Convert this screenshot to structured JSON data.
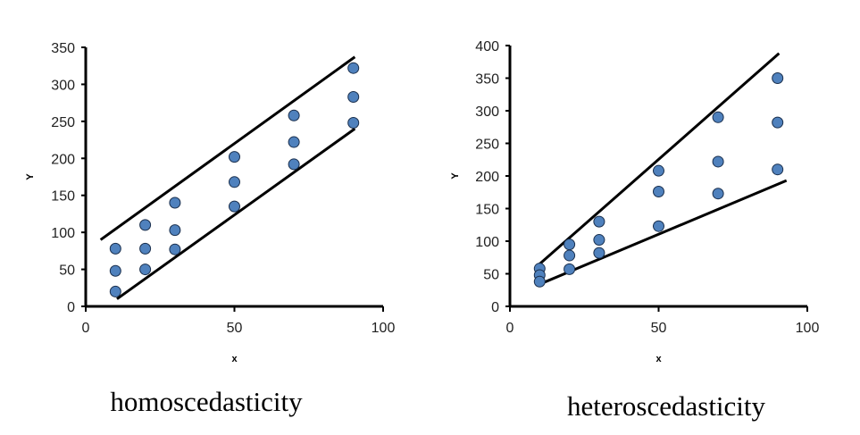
{
  "chart_data": [
    {
      "type": "scatter",
      "caption": "homoscedasticity",
      "xlabel": "x",
      "ylabel": "Y",
      "xlim": [
        0,
        100
      ],
      "ylim": [
        0,
        350
      ],
      "xticks": [
        0,
        50,
        100
      ],
      "yticks": [
        0,
        50,
        100,
        150,
        200,
        250,
        300,
        350
      ],
      "grid": false,
      "marker_color": "#4f81bd",
      "points": [
        {
          "x": 10,
          "y": 78
        },
        {
          "x": 10,
          "y": 48
        },
        {
          "x": 10,
          "y": 20
        },
        {
          "x": 20,
          "y": 110
        },
        {
          "x": 20,
          "y": 78
        },
        {
          "x": 20,
          "y": 50
        },
        {
          "x": 30,
          "y": 140
        },
        {
          "x": 30,
          "y": 103
        },
        {
          "x": 30,
          "y": 77
        },
        {
          "x": 50,
          "y": 202
        },
        {
          "x": 50,
          "y": 168
        },
        {
          "x": 50,
          "y": 135
        },
        {
          "x": 70,
          "y": 258
        },
        {
          "x": 70,
          "y": 222
        },
        {
          "x": 70,
          "y": 192
        },
        {
          "x": 90,
          "y": 322
        },
        {
          "x": 90,
          "y": 283
        },
        {
          "x": 90,
          "y": 248
        }
      ],
      "lines": [
        {
          "from": {
            "x": 5,
            "y": 90
          },
          "to": {
            "x": 90.5,
            "y": 337
          }
        },
        {
          "from": {
            "x": 10.5,
            "y": 10
          },
          "to": {
            "x": 90.5,
            "y": 240
          }
        }
      ]
    },
    {
      "type": "scatter",
      "caption": "heteroscedasticity",
      "xlabel": "x",
      "ylabel": "Y",
      "xlim": [
        0,
        100
      ],
      "ylim": [
        0,
        400
      ],
      "xticks": [
        0,
        50,
        100
      ],
      "yticks": [
        0,
        50,
        100,
        150,
        200,
        250,
        300,
        350,
        400
      ],
      "grid": false,
      "marker_color": "#4f81bd",
      "points": [
        {
          "x": 10,
          "y": 58
        },
        {
          "x": 10,
          "y": 48
        },
        {
          "x": 10,
          "y": 38
        },
        {
          "x": 20,
          "y": 95
        },
        {
          "x": 20,
          "y": 78
        },
        {
          "x": 20,
          "y": 57
        },
        {
          "x": 30,
          "y": 130
        },
        {
          "x": 30,
          "y": 102
        },
        {
          "x": 30,
          "y": 82
        },
        {
          "x": 50,
          "y": 208
        },
        {
          "x": 50,
          "y": 176
        },
        {
          "x": 50,
          "y": 123
        },
        {
          "x": 70,
          "y": 290
        },
        {
          "x": 70,
          "y": 222
        },
        {
          "x": 70,
          "y": 173
        },
        {
          "x": 90,
          "y": 350
        },
        {
          "x": 90,
          "y": 282
        },
        {
          "x": 90,
          "y": 210
        }
      ],
      "lines": [
        {
          "from": {
            "x": 10,
            "y": 65
          },
          "to": {
            "x": 90.5,
            "y": 388
          }
        },
        {
          "from": {
            "x": 10,
            "y": 34
          },
          "to": {
            "x": 93,
            "y": 193
          }
        }
      ]
    }
  ]
}
